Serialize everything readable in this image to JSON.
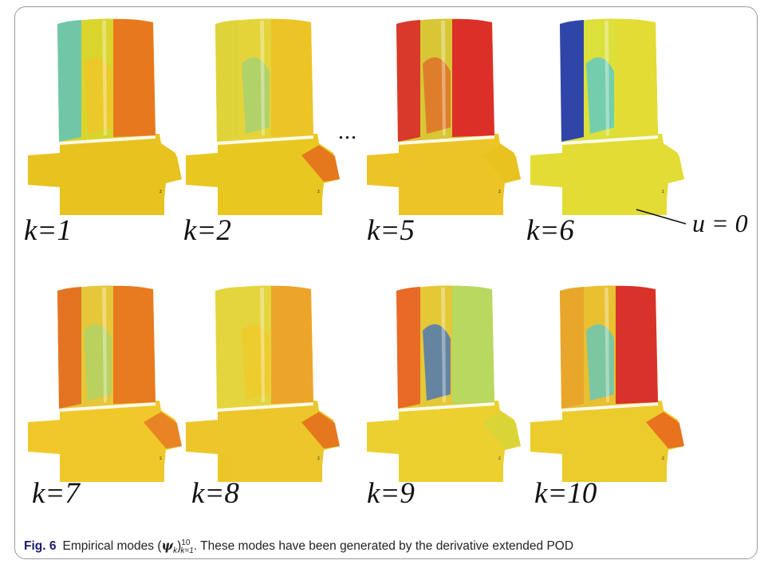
{
  "panels": [
    {
      "label": "k=1",
      "colors": {
        "body": "#e8c21f",
        "blade": "#d9d52c",
        "left": "#6fc7a8",
        "right": "#e8781e",
        "mid": "#f0c428",
        "accent": "#e8c21f"
      }
    },
    {
      "label": "k=2",
      "colors": {
        "body": "#e8c820",
        "blade": "#e4d43a",
        "left": "#dfd33a",
        "right": "#ecc426",
        "mid": "#9fd27a",
        "accent": "#e46a1c"
      }
    },
    {
      "label": "k=5",
      "colors": {
        "body": "#ecc426",
        "blade": "#d8c634",
        "left": "#d8392a",
        "right": "#dc2f28",
        "mid": "#e06628",
        "accent": "#e8c21f"
      }
    },
    {
      "label": "k=6",
      "colors": {
        "body": "#e2dc35",
        "blade": "#dbe03a",
        "left": "#2f46a8",
        "right": "#e2dc35",
        "mid": "#52c8d4",
        "accent": "#e2dc35"
      }
    },
    {
      "label": "k=7",
      "colors": {
        "body": "#f0c82a",
        "blade": "#e6c73a",
        "left": "#e47422",
        "right": "#e87a20",
        "mid": "#a8d46c",
        "accent": "#e67822"
      }
    },
    {
      "label": "k=8",
      "colors": {
        "body": "#ecc62a",
        "blade": "#e4d53e",
        "left": "#e4d53e",
        "right": "#eca52a",
        "mid": "#f0c82a",
        "accent": "#e46a1c"
      }
    },
    {
      "label": "k=9",
      "colors": {
        "body": "#ecd030",
        "blade": "#e4c836",
        "left": "#e86a26",
        "right": "#b8d860",
        "mid": "#3a6ec4",
        "accent": "#d7d638"
      }
    },
    {
      "label": "k=10",
      "colors": {
        "body": "#eccc2c",
        "blade": "#e8c030",
        "left": "#e8a62a",
        "right": "#d8322a",
        "mid": "#5ac8c8",
        "accent": "#e8621c"
      }
    }
  ],
  "ellipsis": "...",
  "annotation": "u = 0",
  "axis_marker": "z",
  "caption": {
    "figure_number": "Fig. 6",
    "text_before": "Empirical modes (",
    "psi": "ψ",
    "k_sub": "k",
    "close": ")",
    "sup": "10",
    "range_sub": "k=1",
    "text_after": ". These modes have been generated by the derivative extended POD"
  }
}
